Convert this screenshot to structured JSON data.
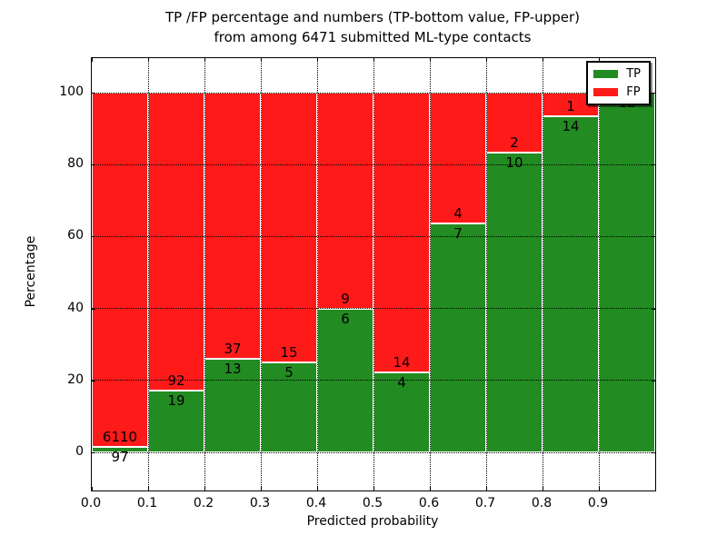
{
  "chart_data": {
    "type": "bar",
    "subtype": "stacked-percentage",
    "title": "TP /FP percentage and numbers (TP-bottom value, FP-upper) from among 6471 submitted ML-type contacts",
    "title_lines": [
      "TP /FP percentage and numbers (TP-bottom value, FP-upper)",
      "from among 6471 submitted ML-type contacts"
    ],
    "xlabel": "Predicted probability",
    "ylabel": "Percentage",
    "total_contacts": 6471,
    "bin_width": 0.1,
    "xlim": [
      0.0,
      1.0
    ],
    "ylim_display": [
      -10.6,
      109.6
    ],
    "y_ticks": [
      0,
      20,
      40,
      60,
      80,
      100
    ],
    "x_tick_labels": [
      "0.0",
      "0.1",
      "0.2",
      "0.3",
      "0.4",
      "0.5",
      "0.6",
      "0.7",
      "0.8",
      "0.9"
    ],
    "grid": "dotted",
    "bins": [
      {
        "x_range": [
          0.0,
          0.1
        ],
        "tp": 97,
        "fp": 6110,
        "tp_percent": 1.56
      },
      {
        "x_range": [
          0.1,
          0.2
        ],
        "tp": 19,
        "fp": 92,
        "tp_percent": 17.12
      },
      {
        "x_range": [
          0.2,
          0.3
        ],
        "tp": 13,
        "fp": 37,
        "tp_percent": 26.0
      },
      {
        "x_range": [
          0.3,
          0.4
        ],
        "tp": 5,
        "fp": 15,
        "tp_percent": 25.0
      },
      {
        "x_range": [
          0.4,
          0.5
        ],
        "tp": 6,
        "fp": 9,
        "tp_percent": 40.0
      },
      {
        "x_range": [
          0.5,
          0.6
        ],
        "tp": 4,
        "fp": 14,
        "tp_percent": 22.22
      },
      {
        "x_range": [
          0.6,
          0.7
        ],
        "tp": 7,
        "fp": 4,
        "tp_percent": 63.64
      },
      {
        "x_range": [
          0.7,
          0.8
        ],
        "tp": 10,
        "fp": 2,
        "tp_percent": 83.33
      },
      {
        "x_range": [
          0.8,
          0.9
        ],
        "tp": 14,
        "fp": 1,
        "tp_percent": 93.33
      },
      {
        "x_range": [
          0.9,
          1.0
        ],
        "tp": 12,
        "fp": 0,
        "tp_percent": 100.0
      }
    ],
    "series": [
      {
        "name": "TP",
        "color": "#228B22",
        "values": [
          97,
          19,
          13,
          5,
          6,
          4,
          7,
          10,
          14,
          12
        ]
      },
      {
        "name": "FP",
        "color": "#FF1A1A",
        "values": [
          6110,
          92,
          37,
          15,
          9,
          14,
          4,
          2,
          1,
          0
        ]
      }
    ],
    "legend": {
      "position": "upper right",
      "entries": [
        {
          "label": "TP",
          "color": "#228B22"
        },
        {
          "label": "FP",
          "color": "#FF1A1A"
        }
      ]
    },
    "colors": {
      "tp": "#228B22",
      "fp": "#FF1A1A",
      "grid": "#000000",
      "background": "#ffffff"
    }
  }
}
